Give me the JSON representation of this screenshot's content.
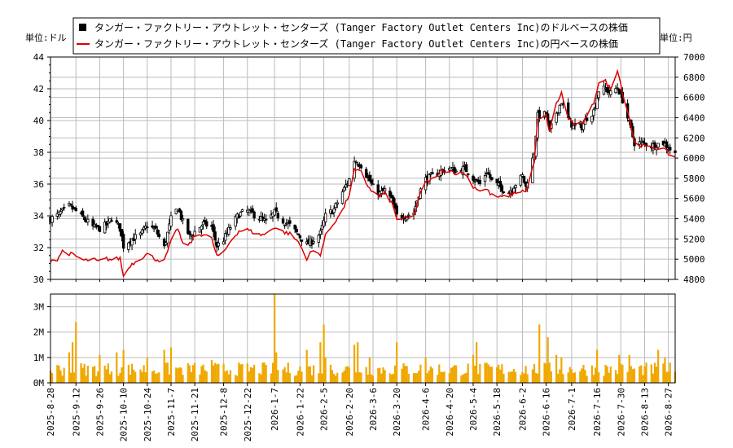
{
  "chart_data": [
    {
      "type": "candlestick+line",
      "title": "",
      "legend": {
        "placement": "top-center",
        "entries": [
          {
            "name": "タンガー・ファクトリー・アウトレット・センターズ (Tanger Factory Outlet Centers Inc)のドルベースの株価",
            "color": "#000000",
            "marker": "square"
          },
          {
            "name": "タンガー・ファクトリー・アウトレット・センターズ (Tanger Factory Outlet Centers Inc)の円ベースの株価",
            "color": "#dd0000",
            "marker": "line"
          }
        ]
      },
      "ylabel_left": "単位:ドル",
      "ylabel_right": "単位:円",
      "ylim_left": [
        30,
        44
      ],
      "ylim_right": [
        4800,
        7000
      ],
      "yticks_left": [
        "30",
        "32",
        "34",
        "36",
        "38",
        "40",
        "42",
        "44"
      ],
      "yticks_right": [
        "4800",
        "5000",
        "5200",
        "5400",
        "5600",
        "5800",
        "6000",
        "6200",
        "6400",
        "6600",
        "6800",
        "7000"
      ],
      "x_date_range": [
        "2025-08-28",
        "2026-08-31"
      ],
      "grid": true,
      "usd_close_anchors": [
        [
          "2025-08-28",
          33.8
        ],
        [
          "2025-09-02",
          34.1
        ],
        [
          "2025-09-08",
          34.6
        ],
        [
          "2025-09-12",
          34.3
        ],
        [
          "2025-09-17",
          33.8
        ],
        [
          "2025-09-22",
          33.3
        ],
        [
          "2025-09-26",
          33.2
        ],
        [
          "2025-10-01",
          33.5
        ],
        [
          "2025-10-03",
          33.9
        ],
        [
          "2025-10-08",
          33.2
        ],
        [
          "2025-10-10",
          32.1
        ],
        [
          "2025-10-14",
          32.5
        ],
        [
          "2025-10-20",
          32.8
        ],
        [
          "2025-10-24",
          33.4
        ],
        [
          "2025-10-29",
          33.1
        ],
        [
          "2025-11-03",
          32.0
        ],
        [
          "2025-11-07",
          33.8
        ],
        [
          "2025-11-11",
          34.5
        ],
        [
          "2025-11-14",
          33.6
        ],
        [
          "2025-11-18",
          32.7
        ],
        [
          "2025-11-21",
          33.0
        ],
        [
          "2025-11-26",
          33.5
        ],
        [
          "2025-12-01",
          33.3
        ],
        [
          "2025-12-04",
          32.1
        ],
        [
          "2025-12-08",
          32.5
        ],
        [
          "2025-12-12",
          33.3
        ],
        [
          "2025-12-17",
          34.1
        ],
        [
          "2025-12-22",
          34.3
        ],
        [
          "2025-12-29",
          33.9
        ],
        [
          "2026-01-02",
          33.6
        ],
        [
          "2026-01-07",
          34.2
        ],
        [
          "2026-01-12",
          33.7
        ],
        [
          "2026-01-16",
          33.4
        ],
        [
          "2026-01-21",
          32.8
        ],
        [
          "2026-01-26",
          32.2
        ],
        [
          "2026-01-29",
          32.4
        ],
        [
          "2026-02-03",
          32.9
        ],
        [
          "2026-02-06",
          34.0
        ],
        [
          "2026-02-11",
          34.4
        ],
        [
          "2026-02-16",
          35.5
        ],
        [
          "2026-02-20",
          36.3
        ],
        [
          "2026-02-23",
          37.5
        ],
        [
          "2026-02-27",
          37.2
        ],
        [
          "2026-03-02",
          36.6
        ],
        [
          "2026-03-06",
          35.8
        ],
        [
          "2026-03-10",
          35.4
        ],
        [
          "2026-03-13",
          35.6
        ],
        [
          "2026-03-17",
          35.0
        ],
        [
          "2026-03-20",
          34.0
        ],
        [
          "2026-03-25",
          34.0
        ],
        [
          "2026-03-30",
          34.2
        ],
        [
          "2026-04-02",
          35.4
        ],
        [
          "2026-04-06",
          36.3
        ],
        [
          "2026-04-10",
          36.5
        ],
        [
          "2026-04-15",
          36.8
        ],
        [
          "2026-04-20",
          37.0
        ],
        [
          "2026-04-24",
          36.8
        ],
        [
          "2026-04-29",
          37.0
        ],
        [
          "2026-05-04",
          36.4
        ],
        [
          "2026-05-08",
          36.0
        ],
        [
          "2026-05-12",
          36.8
        ],
        [
          "2026-05-15",
          36.2
        ],
        [
          "2026-05-20",
          35.8
        ],
        [
          "2026-05-25",
          35.5
        ],
        [
          "2026-05-28",
          35.9
        ],
        [
          "2026-06-02",
          36.5
        ],
        [
          "2026-06-04",
          35.8
        ],
        [
          "2026-06-09",
          38.0
        ],
        [
          "2026-06-11",
          40.3
        ],
        [
          "2026-06-16",
          40.4
        ],
        [
          "2026-06-18",
          39.3
        ],
        [
          "2026-06-22",
          40.5
        ],
        [
          "2026-06-25",
          41.2
        ],
        [
          "2026-06-29",
          40.1
        ],
        [
          "2026-07-02",
          39.6
        ],
        [
          "2026-07-07",
          39.6
        ],
        [
          "2026-07-10",
          40.2
        ],
        [
          "2026-07-14",
          40.6
        ],
        [
          "2026-07-17",
          41.9
        ],
        [
          "2026-07-21",
          42.0
        ],
        [
          "2026-07-24",
          41.7
        ],
        [
          "2026-07-28",
          42.1
        ],
        [
          "2026-07-31",
          41.3
        ],
        [
          "2026-08-04",
          39.8
        ],
        [
          "2026-08-07",
          38.6
        ],
        [
          "2026-08-12",
          38.6
        ],
        [
          "2026-08-17",
          38.4
        ],
        [
          "2026-08-20",
          38.5
        ],
        [
          "2026-08-24",
          38.6
        ],
        [
          "2026-08-28",
          38.2
        ],
        [
          "2026-08-31",
          37.9
        ]
      ],
      "jpy_close_anchors": [
        [
          "2025-08-28",
          4990
        ],
        [
          "2025-09-01",
          5000
        ],
        [
          "2025-09-04",
          5080
        ],
        [
          "2025-09-09",
          5050
        ],
        [
          "2025-09-12",
          5030
        ],
        [
          "2025-09-17",
          4985
        ],
        [
          "2025-09-22",
          5000
        ],
        [
          "2025-09-25",
          4975
        ],
        [
          "2025-09-30",
          5005
        ],
        [
          "2025-10-03",
          4995
        ],
        [
          "2025-10-08",
          5010
        ],
        [
          "2025-10-10",
          4830
        ],
        [
          "2025-10-14",
          4940
        ],
        [
          "2025-10-20",
          5010
        ],
        [
          "2025-10-24",
          5050
        ],
        [
          "2025-10-29",
          5000
        ],
        [
          "2025-11-03",
          4980
        ],
        [
          "2025-11-07",
          5170
        ],
        [
          "2025-11-11",
          5310
        ],
        [
          "2025-11-14",
          5140
        ],
        [
          "2025-11-18",
          5150
        ],
        [
          "2025-11-21",
          5230
        ],
        [
          "2025-11-26",
          5250
        ],
        [
          "2025-12-01",
          5200
        ],
        [
          "2025-12-04",
          5030
        ],
        [
          "2025-12-08",
          5060
        ],
        [
          "2025-12-12",
          5180
        ],
        [
          "2025-12-17",
          5280
        ],
        [
          "2025-12-22",
          5290
        ],
        [
          "2025-12-29",
          5240
        ],
        [
          "2026-01-02",
          5250
        ],
        [
          "2026-01-07",
          5320
        ],
        [
          "2026-01-12",
          5270
        ],
        [
          "2026-01-16",
          5250
        ],
        [
          "2026-01-21",
          5170
        ],
        [
          "2026-01-26",
          5010
        ],
        [
          "2026-01-29",
          5080
        ],
        [
          "2026-02-03",
          5050
        ],
        [
          "2026-02-06",
          5230
        ],
        [
          "2026-02-11",
          5360
        ],
        [
          "2026-02-16",
          5480
        ],
        [
          "2026-02-20",
          5640
        ],
        [
          "2026-02-23",
          5880
        ],
        [
          "2026-02-27",
          5860
        ],
        [
          "2026-03-02",
          5750
        ],
        [
          "2026-03-06",
          5660
        ],
        [
          "2026-03-10",
          5620
        ],
        [
          "2026-03-13",
          5650
        ],
        [
          "2026-03-17",
          5560
        ],
        [
          "2026-03-20",
          5400
        ],
        [
          "2026-03-25",
          5400
        ],
        [
          "2026-03-30",
          5420
        ],
        [
          "2026-04-02",
          5610
        ],
        [
          "2026-04-06",
          5760
        ],
        [
          "2026-04-10",
          5790
        ],
        [
          "2026-04-15",
          5870
        ],
        [
          "2026-04-20",
          5880
        ],
        [
          "2026-04-24",
          5850
        ],
        [
          "2026-04-29",
          5850
        ],
        [
          "2026-05-04",
          5720
        ],
        [
          "2026-05-08",
          5680
        ],
        [
          "2026-05-12",
          5690
        ],
        [
          "2026-05-15",
          5630
        ],
        [
          "2026-05-20",
          5610
        ],
        [
          "2026-05-25",
          5630
        ],
        [
          "2026-05-28",
          5650
        ],
        [
          "2026-06-02",
          5680
        ],
        [
          "2026-06-04",
          5660
        ],
        [
          "2026-06-09",
          5960
        ],
        [
          "2026-06-11",
          6370
        ],
        [
          "2026-06-16",
          6420
        ],
        [
          "2026-06-18",
          6260
        ],
        [
          "2026-06-22",
          6540
        ],
        [
          "2026-06-25",
          6640
        ],
        [
          "2026-06-29",
          6400
        ],
        [
          "2026-07-02",
          6340
        ],
        [
          "2026-07-07",
          6340
        ],
        [
          "2026-07-10",
          6400
        ],
        [
          "2026-07-14",
          6550
        ],
        [
          "2026-07-17",
          6750
        ],
        [
          "2026-07-21",
          6760
        ],
        [
          "2026-07-24",
          6680
        ],
        [
          "2026-07-28",
          6880
        ],
        [
          "2026-07-31",
          6650
        ],
        [
          "2026-08-04",
          6400
        ],
        [
          "2026-08-07",
          6150
        ],
        [
          "2026-08-12",
          6120
        ],
        [
          "2026-08-17",
          6100
        ],
        [
          "2026-08-20",
          6110
        ],
        [
          "2026-08-24",
          6090
        ],
        [
          "2026-08-28",
          6030
        ],
        [
          "2026-08-31",
          6010
        ]
      ]
    },
    {
      "type": "bar",
      "series": [
        {
          "name": "",
          "color": "#f0a800"
        }
      ],
      "ylim": [
        0,
        3500000
      ],
      "yticks": [
        "0M",
        "1M",
        "2M",
        "3M"
      ],
      "xticks": [
        "2025-8-28",
        "2025-9-12",
        "2025-9-26",
        "2025-10-10",
        "2025-10-24",
        "2025-11-7",
        "2025-11-21",
        "2025-12-8",
        "2025-12-22",
        "2026-1-7",
        "2026-1-22",
        "2026-2-5",
        "2026-2-20",
        "2026-3-6",
        "2026-3-20",
        "2026-4-6",
        "2026-4-20",
        "2026-5-4",
        "2026-5-18",
        "2026-6-2",
        "2026-6-16",
        "2026-7-1",
        "2026-7-16",
        "2026-7-30",
        "2026-8-13",
        "2026-8-27"
      ],
      "volume_baseline": 600000,
      "volume_spikes": [
        [
          "2025-09-08",
          1200000
        ],
        [
          "2025-09-10",
          1600000
        ],
        [
          "2025-09-12",
          2400000
        ],
        [
          "2025-09-26",
          1100000
        ],
        [
          "2025-10-06",
          1200000
        ],
        [
          "2025-10-10",
          1300000
        ],
        [
          "2025-10-24",
          1000000
        ],
        [
          "2025-11-03",
          1300000
        ],
        [
          "2025-11-07",
          1400000
        ],
        [
          "2025-12-01",
          900000
        ],
        [
          "2026-01-07",
          3500000
        ],
        [
          "2026-01-08",
          1200000
        ],
        [
          "2026-01-26",
          1300000
        ],
        [
          "2026-02-03",
          1600000
        ],
        [
          "2026-02-05",
          2300000
        ],
        [
          "2026-02-06",
          1000000
        ],
        [
          "2026-02-23",
          1500000
        ],
        [
          "2026-02-25",
          1600000
        ],
        [
          "2026-03-04",
          1000000
        ],
        [
          "2026-03-20",
          1600000
        ],
        [
          "2026-04-06",
          1000000
        ],
        [
          "2026-05-04",
          1100000
        ],
        [
          "2026-05-06",
          1600000
        ],
        [
          "2026-06-12",
          2300000
        ],
        [
          "2026-06-17",
          1800000
        ],
        [
          "2026-06-22",
          1100000
        ],
        [
          "2026-06-25",
          1000000
        ],
        [
          "2026-07-16",
          1300000
        ],
        [
          "2026-07-29",
          1100000
        ],
        [
          "2026-08-04",
          1100000
        ],
        [
          "2026-08-21",
          1300000
        ],
        [
          "2026-08-25",
          1000000
        ]
      ]
    }
  ]
}
